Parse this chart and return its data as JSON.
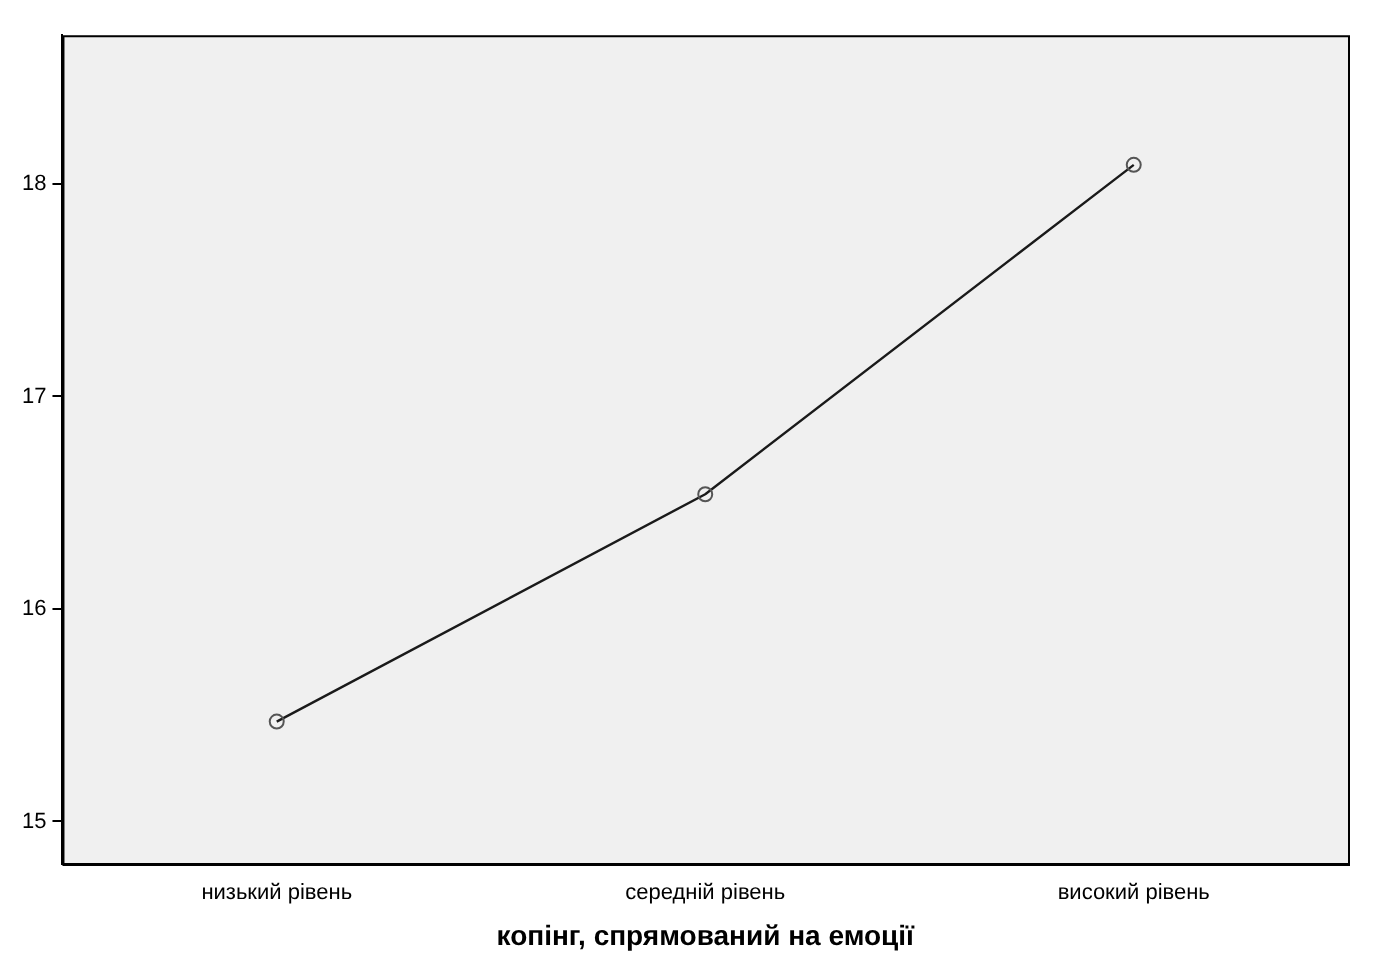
{
  "chart_data": {
    "type": "line",
    "xlabel": "копінг, спрямований на емоції",
    "categories": [
      "низький рівень",
      "середній рівень",
      "високий рівень"
    ],
    "series": [
      {
        "color": "#1a1a1a",
        "values": [
          15.47,
          16.54,
          18.09
        ]
      }
    ],
    "ylim": [
      14.8,
      18.7
    ],
    "yticks": [
      15,
      16,
      17,
      18
    ],
    "grid": false,
    "legend": false,
    "marker": "circle",
    "line_style": "solid"
  }
}
